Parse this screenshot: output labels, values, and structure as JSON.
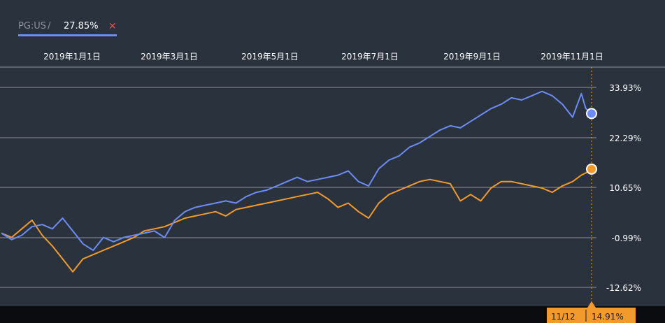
{
  "legend": {
    "ticker": "PG:US",
    "separator": " / ",
    "value": "27.85%",
    "close_icon": "close-icon"
  },
  "cursor": {
    "date": "11/12",
    "value": "14.91%"
  },
  "colors": {
    "background": "#2a323d",
    "bottom_bar": "#0a0c0f",
    "grid": "#8e949b",
    "series_pg": "#6b8cf5",
    "series_benchmark": "#f39a2c",
    "cursor_label_bg": "#f39a2c",
    "close": "#e74c4c"
  },
  "chart_data": {
    "type": "line",
    "x_ticks": [
      "2019年1月1日",
      "2019年3月1日",
      "2019年5月1日",
      "2019年7月1日",
      "2019年9月1日",
      "2019年11月1日"
    ],
    "y_ticks": [
      "33.93%",
      "22.29%",
      "10.65%",
      "-0.99%",
      "-12.62%"
    ],
    "ylim": [
      -12.62,
      33.93
    ],
    "x_range": [
      "2018-10-03",
      "2019-11-12"
    ],
    "series": [
      {
        "name": "PG:US",
        "color": "#6b8cf5",
        "last_value": 27.85,
        "points": [
          [
            "2018-10-03",
            0.0
          ],
          [
            "2018-10-10",
            -1.5
          ],
          [
            "2018-10-17",
            -0.5
          ],
          [
            "2018-10-24",
            1.5
          ],
          [
            "2018-10-31",
            2.0
          ],
          [
            "2018-11-07",
            1.0
          ],
          [
            "2018-11-14",
            3.5
          ],
          [
            "2018-11-21",
            0.5
          ],
          [
            "2018-11-28",
            -2.5
          ],
          [
            "2018-12-05",
            -4.0
          ],
          [
            "2018-12-12",
            -1.0
          ],
          [
            "2018-12-19",
            -2.0
          ],
          [
            "2018-12-26",
            -1.0
          ],
          [
            "2019-01-02",
            -0.5
          ],
          [
            "2019-01-09",
            0.0
          ],
          [
            "2019-01-16",
            0.5
          ],
          [
            "2019-01-23",
            -1.0
          ],
          [
            "2019-01-30",
            3.0
          ],
          [
            "2019-02-06",
            5.0
          ],
          [
            "2019-02-13",
            6.0
          ],
          [
            "2019-02-20",
            6.5
          ],
          [
            "2019-02-27",
            7.0
          ],
          [
            "2019-03-06",
            7.5
          ],
          [
            "2019-03-13",
            7.0
          ],
          [
            "2019-03-20",
            8.5
          ],
          [
            "2019-03-27",
            9.5
          ],
          [
            "2019-04-03",
            10.0
          ],
          [
            "2019-04-10",
            11.0
          ],
          [
            "2019-04-17",
            12.0
          ],
          [
            "2019-04-24",
            13.0
          ],
          [
            "2019-05-01",
            12.0
          ],
          [
            "2019-05-08",
            12.5
          ],
          [
            "2019-05-15",
            13.0
          ],
          [
            "2019-05-22",
            13.5
          ],
          [
            "2019-05-29",
            14.5
          ],
          [
            "2019-06-05",
            12.0
          ],
          [
            "2019-06-12",
            11.0
          ],
          [
            "2019-06-19",
            15.0
          ],
          [
            "2019-06-26",
            17.0
          ],
          [
            "2019-07-03",
            18.0
          ],
          [
            "2019-07-10",
            20.0
          ],
          [
            "2019-07-17",
            21.0
          ],
          [
            "2019-07-24",
            22.5
          ],
          [
            "2019-07-31",
            24.0
          ],
          [
            "2019-08-07",
            25.0
          ],
          [
            "2019-08-14",
            24.5
          ],
          [
            "2019-08-21",
            26.0
          ],
          [
            "2019-08-28",
            27.5
          ],
          [
            "2019-09-04",
            29.0
          ],
          [
            "2019-09-11",
            30.0
          ],
          [
            "2019-09-18",
            31.5
          ],
          [
            "2019-09-25",
            31.0
          ],
          [
            "2019-10-02",
            32.0
          ],
          [
            "2019-10-09",
            33.0
          ],
          [
            "2019-10-16",
            32.0
          ],
          [
            "2019-10-23",
            30.0
          ],
          [
            "2019-10-30",
            27.0
          ],
          [
            "2019-11-05",
            32.5
          ],
          [
            "2019-11-08",
            29.0
          ],
          [
            "2019-11-12",
            27.85
          ]
        ]
      },
      {
        "name": "",
        "color": "#f39a2c",
        "last_value": 14.91,
        "points": [
          [
            "2018-10-03",
            0.0
          ],
          [
            "2018-10-10",
            -1.0
          ],
          [
            "2018-10-17",
            1.0
          ],
          [
            "2018-10-24",
            3.0
          ],
          [
            "2018-10-31",
            -0.5
          ],
          [
            "2018-11-07",
            -3.0
          ],
          [
            "2018-11-14",
            -6.0
          ],
          [
            "2018-11-21",
            -9.0
          ],
          [
            "2018-11-28",
            -6.0
          ],
          [
            "2018-12-05",
            -5.0
          ],
          [
            "2018-12-12",
            -4.0
          ],
          [
            "2018-12-19",
            -3.0
          ],
          [
            "2018-12-26",
            -2.0
          ],
          [
            "2019-01-02",
            -1.0
          ],
          [
            "2019-01-09",
            0.5
          ],
          [
            "2019-01-16",
            1.0
          ],
          [
            "2019-01-23",
            1.5
          ],
          [
            "2019-01-30",
            2.5
          ],
          [
            "2019-02-06",
            3.5
          ],
          [
            "2019-02-13",
            4.0
          ],
          [
            "2019-02-20",
            4.5
          ],
          [
            "2019-02-27",
            5.0
          ],
          [
            "2019-03-06",
            4.0
          ],
          [
            "2019-03-13",
            5.5
          ],
          [
            "2019-03-20",
            6.0
          ],
          [
            "2019-03-27",
            6.5
          ],
          [
            "2019-04-03",
            7.0
          ],
          [
            "2019-04-10",
            7.5
          ],
          [
            "2019-04-17",
            8.0
          ],
          [
            "2019-04-24",
            8.5
          ],
          [
            "2019-05-01",
            9.0
          ],
          [
            "2019-05-08",
            9.5
          ],
          [
            "2019-05-15",
            8.0
          ],
          [
            "2019-05-22",
            6.0
          ],
          [
            "2019-05-29",
            7.0
          ],
          [
            "2019-06-05",
            5.0
          ],
          [
            "2019-06-12",
            3.5
          ],
          [
            "2019-06-19",
            7.0
          ],
          [
            "2019-06-26",
            9.0
          ],
          [
            "2019-07-03",
            10.0
          ],
          [
            "2019-07-10",
            11.0
          ],
          [
            "2019-07-17",
            12.0
          ],
          [
            "2019-07-24",
            12.5
          ],
          [
            "2019-07-31",
            12.0
          ],
          [
            "2019-08-07",
            11.5
          ],
          [
            "2019-08-14",
            7.5
          ],
          [
            "2019-08-21",
            9.0
          ],
          [
            "2019-08-28",
            7.5
          ],
          [
            "2019-09-04",
            10.5
          ],
          [
            "2019-09-11",
            12.0
          ],
          [
            "2019-09-18",
            12.0
          ],
          [
            "2019-09-25",
            11.5
          ],
          [
            "2019-10-02",
            11.0
          ],
          [
            "2019-10-09",
            10.5
          ],
          [
            "2019-10-16",
            9.5
          ],
          [
            "2019-10-23",
            11.0
          ],
          [
            "2019-10-30",
            12.0
          ],
          [
            "2019-11-05",
            13.5
          ],
          [
            "2019-11-08",
            14.0
          ],
          [
            "2019-11-12",
            14.91
          ]
        ]
      }
    ]
  }
}
